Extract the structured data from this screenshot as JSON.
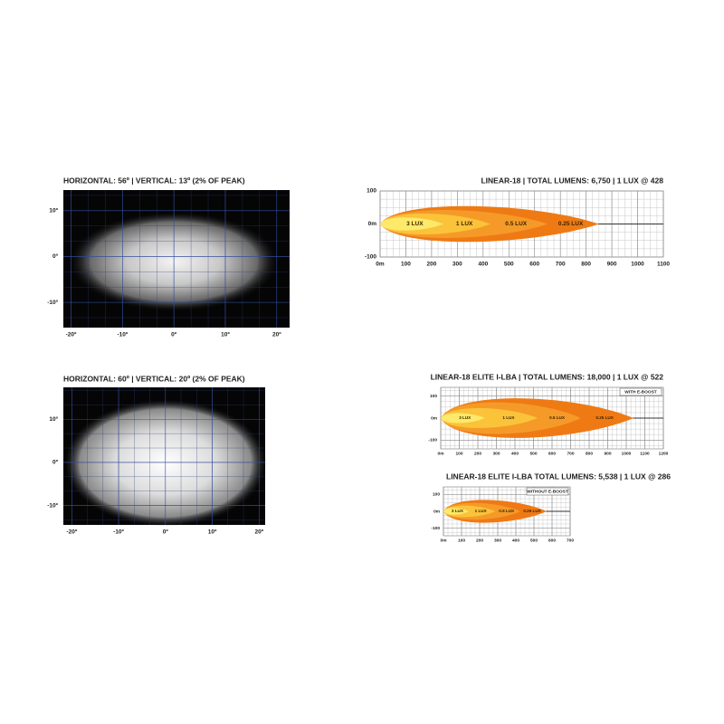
{
  "chart_data": [
    {
      "type": "beam",
      "title": "HORIZONTAL: 56º | VERTICAL: 13º (2% OF PEAK)",
      "xlim": [
        -21.5,
        22.5
      ],
      "ylim": [
        -15.5,
        14.5
      ],
      "xticks": [
        {
          "value": -20,
          "label": "-20º"
        },
        {
          "value": -10,
          "label": "-10º"
        },
        {
          "value": 0,
          "label": "0º"
        },
        {
          "value": 10,
          "label": "10º"
        },
        {
          "value": 20,
          "label": "20º"
        }
      ],
      "yticks": [
        {
          "value": 10,
          "label": "10º"
        },
        {
          "value": 0,
          "label": "0º"
        },
        {
          "value": -10,
          "label": "-10º"
        }
      ]
    },
    {
      "type": "isolux",
      "title": "LINEAR-18 | TOTAL LUMENS: 6,750 | 1 LUX @ 428",
      "xlim": [
        0,
        1100
      ],
      "ylim": [
        -100,
        100
      ],
      "xticks": [
        {
          "value": 0,
          "label": "0m"
        },
        100,
        200,
        300,
        400,
        500,
        600,
        700,
        800,
        900,
        1000,
        1100
      ],
      "yticks": [
        100,
        {
          "value": 0,
          "label": "0m"
        },
        -100
      ],
      "contours": [
        {
          "label": "3 LUX",
          "color": "#fde96a",
          "reach": 245,
          "half_width": 22
        },
        {
          "label": "1 LUX",
          "color": "#fbc33a",
          "reach": 428,
          "half_width": 35
        },
        {
          "label": "0.5 LUX",
          "color": "#f59a28",
          "reach": 650,
          "half_width": 47
        },
        {
          "label": "0.25 LUX",
          "color": "#ef7a14",
          "reach": 850,
          "half_width": 60
        }
      ]
    },
    {
      "type": "beam",
      "title": "HORIZONTAL: 60º | VERTICAL: 20º (2% OF PEAK)",
      "xlim": [
        -21.8,
        21.3
      ],
      "ylim": [
        -14.5,
        17.4
      ],
      "xticks": [
        {
          "value": -20,
          "label": "-20º"
        },
        {
          "value": -10,
          "label": "-10º"
        },
        {
          "value": 0,
          "label": "0º"
        },
        {
          "value": 10,
          "label": "10º"
        },
        {
          "value": 20,
          "label": "20º"
        }
      ],
      "yticks": [
        {
          "value": 10,
          "label": "10º"
        },
        {
          "value": 0,
          "label": "0º"
        },
        {
          "value": -10,
          "label": "-10º"
        }
      ]
    },
    {
      "type": "isolux",
      "title": "LINEAR-18 ELITE I-LBA | TOTAL LUMENS: 18,000 | 1 LUX @ 522",
      "badge": "WITH E-BOOST",
      "xlim": [
        0,
        1200
      ],
      "ylim": [
        -140,
        140
      ],
      "xticks": [
        {
          "value": 0,
          "label": "0m"
        },
        100,
        200,
        300,
        400,
        500,
        600,
        700,
        800,
        900,
        1000,
        1100,
        1200
      ],
      "yticks": [
        100,
        {
          "value": 0,
          "label": "0m"
        },
        -100
      ],
      "contours": [
        {
          "label": "3 LUX",
          "color": "#fde96a",
          "reach": 237,
          "half_width": 25
        },
        {
          "label": "1 LUX",
          "color": "#fbc33a",
          "reach": 522,
          "half_width": 50
        },
        {
          "label": "0.5 LUX",
          "color": "#f59a28",
          "reach": 755,
          "half_width": 80
        },
        {
          "label": "0.25 LUX",
          "color": "#ef7a14",
          "reach": 1040,
          "half_width": 100
        }
      ]
    },
    {
      "type": "isolux",
      "title": "LINEAR-18 ELITE I-LBA TOTAL LUMENS: 5,538 | 1 LUX @ 286",
      "badge": "WITHOUT E-BOOST",
      "xlim": [
        0,
        700
      ],
      "ylim": [
        -145,
        145
      ],
      "xticks": [
        {
          "value": 0,
          "label": "0m"
        },
        100,
        200,
        300,
        400,
        500,
        600,
        700
      ],
      "yticks": [
        100,
        {
          "value": 0,
          "label": "0m"
        },
        -100
      ],
      "contours": [
        {
          "label": "3 LUX",
          "color": "#fde96a",
          "reach": 140,
          "half_width": 22
        },
        {
          "label": "1 LUX",
          "color": "#fbc33a",
          "reach": 286,
          "half_width": 38
        },
        {
          "label": "0.5 LUX",
          "color": "#f59a28",
          "reach": 425,
          "half_width": 55
        },
        {
          "label": "0.25 LUX",
          "color": "#ef7a14",
          "reach": 570,
          "half_width": 75
        }
      ]
    }
  ]
}
